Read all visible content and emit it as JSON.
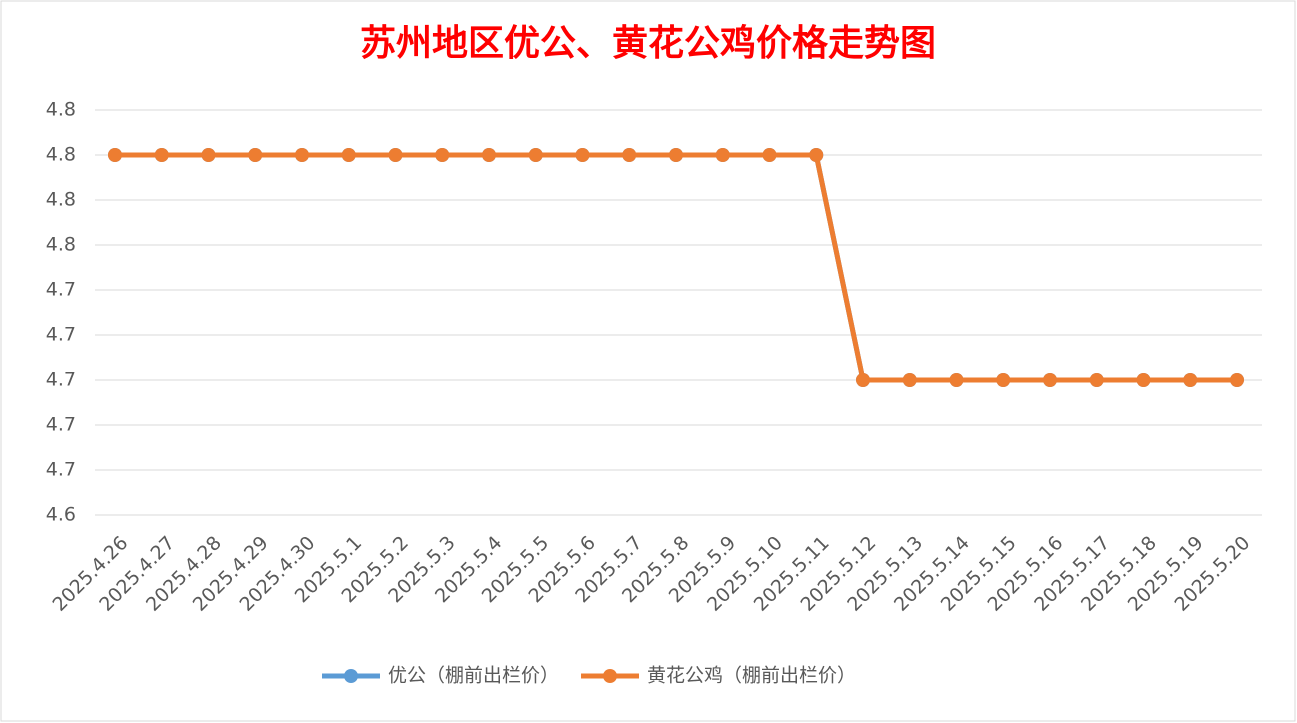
{
  "chart_data": {
    "type": "line",
    "title": "苏州地区优公、黄花公鸡价格走势图",
    "categories": [
      "2025.4.26",
      "2025.4.27",
      "2025.4.28",
      "2025.4.29",
      "2025.4.30",
      "2025.5.1",
      "2025.5.2",
      "2025.5.3",
      "2025.5.4",
      "2025.5.5",
      "2025.5.6",
      "2025.5.7",
      "2025.5.8",
      "2025.5.9",
      "2025.5.10",
      "2025.5.11",
      "2025.5.12",
      "2025.5.13",
      "2025.5.14",
      "2025.5.15",
      "2025.5.16",
      "2025.5.17",
      "2025.5.18",
      "2025.5.19",
      "2025.5.20"
    ],
    "series": [
      {
        "name": "优公（棚前出栏价）",
        "color": "#5b9bd5",
        "values": [
          4.8,
          4.8,
          4.8,
          4.8,
          4.8,
          4.8,
          4.8,
          4.8,
          4.8,
          4.8,
          4.8,
          4.8,
          4.8,
          4.8,
          4.8,
          4.8,
          4.7,
          4.7,
          4.7,
          4.7,
          4.7,
          4.7,
          4.7,
          4.7,
          4.7
        ]
      },
      {
        "name": "黄花公鸡（棚前出栏价）",
        "color": "#ed7d31",
        "values": [
          4.8,
          4.8,
          4.8,
          4.8,
          4.8,
          4.8,
          4.8,
          4.8,
          4.8,
          4.8,
          4.8,
          4.8,
          4.8,
          4.8,
          4.8,
          4.8,
          4.7,
          4.7,
          4.7,
          4.7,
          4.7,
          4.7,
          4.7,
          4.7,
          4.7
        ]
      }
    ],
    "ylim": [
      4.64,
      4.82
    ],
    "yticks": [
      {
        "value": 4.64,
        "label": "4.6"
      },
      {
        "value": 4.66,
        "label": "4.7"
      },
      {
        "value": 4.68,
        "label": "4.7"
      },
      4.7,
      {
        "value": 4.72,
        "label": "4.7"
      },
      {
        "value": 4.74,
        "label": "4.7"
      },
      {
        "value": 4.76,
        "label": "4.8"
      },
      {
        "value": 4.78,
        "label": "4.8"
      },
      4.8,
      {
        "value": 4.82,
        "label": "4.8"
      }
    ],
    "grid": true,
    "legend": "bottom"
  }
}
